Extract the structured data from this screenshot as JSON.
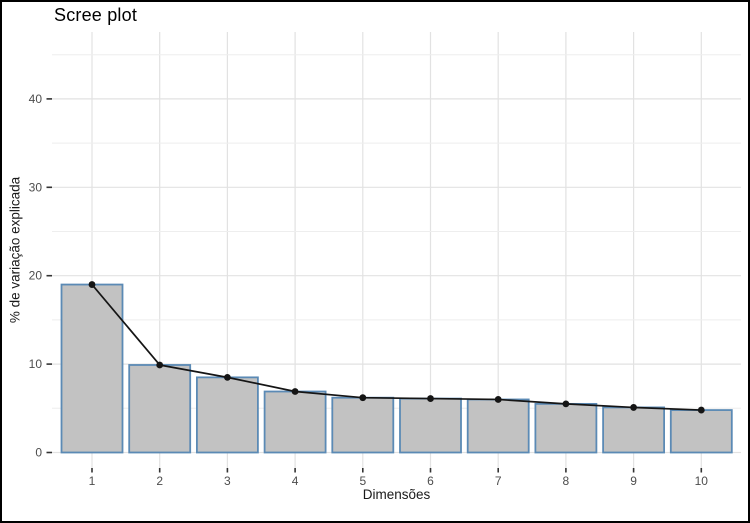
{
  "chart_data": {
    "type": "bar",
    "overlay": "line+points",
    "title": "Scree plot",
    "xlabel": "Dimensões",
    "ylabel": "% de variação explicada",
    "categories": [
      "1",
      "2",
      "3",
      "4",
      "5",
      "6",
      "7",
      "8",
      "9",
      "10"
    ],
    "values": [
      19.0,
      9.9,
      8.5,
      6.9,
      6.2,
      6.1,
      6.0,
      5.5,
      5.1,
      4.8
    ],
    "series": [
      {
        "name": "percent-variance-bars",
        "values": [
          19.0,
          9.9,
          8.5,
          6.9,
          6.2,
          6.1,
          6.0,
          5.5,
          5.1,
          4.8
        ]
      },
      {
        "name": "percent-variance-line",
        "values": [
          19.0,
          9.9,
          8.5,
          6.9,
          6.2,
          6.1,
          6.0,
          5.5,
          5.1,
          4.8
        ]
      }
    ],
    "y_ticks": [
      0,
      10,
      20,
      30,
      40
    ],
    "y_tick_labels": [
      "0",
      "10",
      "20",
      "30",
      "40"
    ],
    "y_minor_gridlines": [
      5,
      15,
      25,
      35,
      45
    ],
    "ylim": [
      0,
      47.5
    ],
    "grid": "major-and-minor, light gray on white",
    "legend_position": "none",
    "colors": {
      "bar_fill": "#c2c2c2",
      "bar_border": "#5b8ab5",
      "line": "#151515",
      "point": "#151515",
      "grid_major": "#e2e2e2",
      "grid_minor": "#eeeeee",
      "tick_mark": "#333333",
      "tick_text": "#4d4d4d",
      "axis_title_text": "#1a1a1a",
      "title_text": "#000000",
      "figure_border": "#000000",
      "background": "#ffffff"
    }
  }
}
